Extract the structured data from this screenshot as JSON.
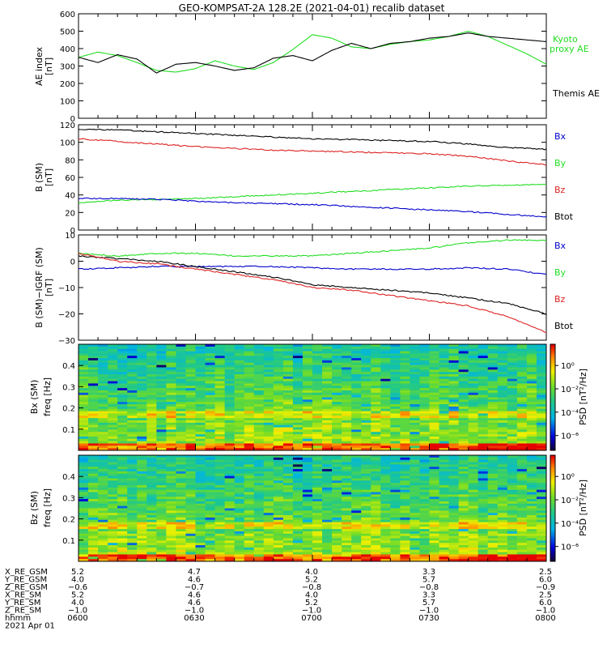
{
  "title": "GEO-KOMPSAT-2A 128.2E (2021-04-01) recalib dataset",
  "colors": {
    "black": "#000000",
    "green": "#22dd22",
    "red": "#dd2222",
    "blue": "#0000cc"
  },
  "chart_data": [
    {
      "type": "line",
      "panel": "ae",
      "ylabel": "AE index",
      "yunit": "[nT]",
      "ylim": [
        0,
        600
      ],
      "yticks": [
        "0",
        "100",
        "200",
        "300",
        "400",
        "500",
        "600"
      ],
      "x": [
        0,
        5,
        10,
        15,
        20,
        25,
        30,
        35,
        40,
        45,
        50,
        55,
        60,
        65,
        70,
        75,
        80,
        85,
        90,
        95,
        100,
        105,
        110,
        115,
        120
      ],
      "series": [
        {
          "name": "Kyoto proxy AE",
          "color": "#22dd22",
          "values": [
            350,
            380,
            360,
            320,
            275,
            265,
            285,
            330,
            300,
            280,
            320,
            395,
            480,
            460,
            410,
            400,
            425,
            440,
            450,
            470,
            500,
            470,
            420,
            370,
            310
          ]
        },
        {
          "name": "Themis AE",
          "color": "#000000",
          "values": [
            350,
            320,
            365,
            340,
            260,
            310,
            320,
            300,
            275,
            290,
            345,
            360,
            330,
            390,
            430,
            400,
            430,
            440,
            460,
            470,
            490,
            470,
            460,
            450,
            440
          ]
        }
      ]
    },
    {
      "type": "line",
      "panel": "b",
      "ylabel": "B (SM)",
      "yunit": "[nT]",
      "ylim": [
        0,
        120
      ],
      "yticks": [
        "0",
        "20",
        "40",
        "60",
        "80",
        "100",
        "120"
      ],
      "x": [
        0,
        10,
        20,
        30,
        40,
        50,
        60,
        70,
        80,
        90,
        100,
        110,
        120
      ],
      "legend": [
        "Bx",
        "By",
        "Bz",
        "Btot"
      ],
      "legend_colors": [
        "#0000cc",
        "#22dd22",
        "#dd2222",
        "#000000"
      ],
      "series": [
        {
          "color": "#000000",
          "values": [
            115,
            114,
            112,
            110,
            108,
            106,
            104,
            103,
            102,
            101,
            98,
            94,
            92
          ]
        },
        {
          "color": "#dd2222",
          "values": [
            104,
            101,
            98,
            95,
            93,
            91,
            90,
            89,
            88,
            87,
            84,
            79,
            74
          ]
        },
        {
          "color": "#22dd22",
          "values": [
            31,
            34,
            35,
            36,
            38,
            40,
            42,
            44,
            46,
            48,
            50,
            51,
            52
          ]
        },
        {
          "color": "#0000cc",
          "values": [
            36,
            36,
            35,
            33,
            31,
            30,
            29,
            27,
            25,
            23,
            21,
            18,
            15
          ]
        }
      ]
    },
    {
      "type": "line",
      "panel": "db",
      "ylabel": "B (SM)−IGRF (SM)",
      "yunit": "[nT]",
      "ylim": [
        -30,
        10
      ],
      "yticks": [
        "−30",
        "−20",
        "−10",
        "0",
        "10"
      ],
      "x": [
        0,
        10,
        20,
        30,
        40,
        50,
        60,
        70,
        80,
        90,
        100,
        110,
        120
      ],
      "legend": [
        "Bx",
        "By",
        "Bz",
        "Btot"
      ],
      "legend_colors": [
        "#0000cc",
        "#22dd22",
        "#dd2222",
        "#000000"
      ],
      "series": [
        {
          "color": "#22dd22",
          "values": [
            3,
            2,
            3,
            3,
            2,
            2,
            2,
            3,
            4,
            5,
            7,
            8,
            8
          ]
        },
        {
          "color": "#0000cc",
          "values": [
            -3,
            -2.5,
            -2,
            -2,
            -2,
            -2,
            -2.5,
            -3,
            -3,
            -3,
            -2.5,
            -3,
            -5
          ]
        },
        {
          "color": "#000000",
          "values": [
            2,
            1,
            0,
            -2,
            -4,
            -6,
            -9,
            -10,
            -11,
            -12,
            -14,
            -16,
            -20
          ]
        },
        {
          "color": "#dd2222",
          "values": [
            3,
            0,
            -1,
            -3,
            -5,
            -7,
            -10,
            -11,
            -13,
            -15,
            -17,
            -21,
            -27
          ]
        }
      ]
    },
    {
      "type": "heatmap",
      "panel": "spec_bx",
      "ylabel": "Bx (SM)",
      "yunit": "freq [Hz]",
      "ylim": [
        0,
        0.5
      ],
      "yticks": [
        "0.1",
        "0.2",
        "0.3",
        "0.4"
      ],
      "colorbar_label": "PSD [nT²/Hz]",
      "colorbar_ticks": [
        "10⁰",
        "10⁻²",
        "10⁻⁴",
        "10⁻⁶"
      ]
    },
    {
      "type": "heatmap",
      "panel": "spec_bz",
      "ylabel": "Bz (SM)",
      "yunit": "freq [Hz]",
      "ylim": [
        0,
        0.5
      ],
      "yticks": [
        "0.1",
        "0.2",
        "0.3",
        "0.4"
      ],
      "colorbar_label": "PSD [nT²/Hz]",
      "colorbar_ticks": [
        "10⁰",
        "10⁻²",
        "10⁻⁴",
        "10⁻⁶"
      ]
    }
  ],
  "ephemeris": {
    "labels": [
      "X_RE_GSM",
      "Y_RE_GSM",
      "Z_RE_GSM",
      "X_RE_SM",
      "Y_RE_SM",
      "Z_RE_SM",
      "hhmm",
      "2021 Apr 01"
    ],
    "columns": [
      [
        "5.2",
        "4.0",
        "−0.6",
        "5.2",
        "4.0",
        "−1.0",
        "0600"
      ],
      [
        "4.7",
        "4.6",
        "−0.7",
        "4.6",
        "4.6",
        "−1.0",
        "0630"
      ],
      [
        "4.0",
        "5.2",
        "−0.8",
        "4.0",
        "5.2",
        "−1.0",
        "0700"
      ],
      [
        "3.3",
        "5.7",
        "−0.8",
        "3.3",
        "5.7",
        "−1.0",
        "0730"
      ],
      [
        "2.5",
        "6.0",
        "−0.9",
        "2.5",
        "6.0",
        "−1.0",
        "0800"
      ]
    ]
  }
}
